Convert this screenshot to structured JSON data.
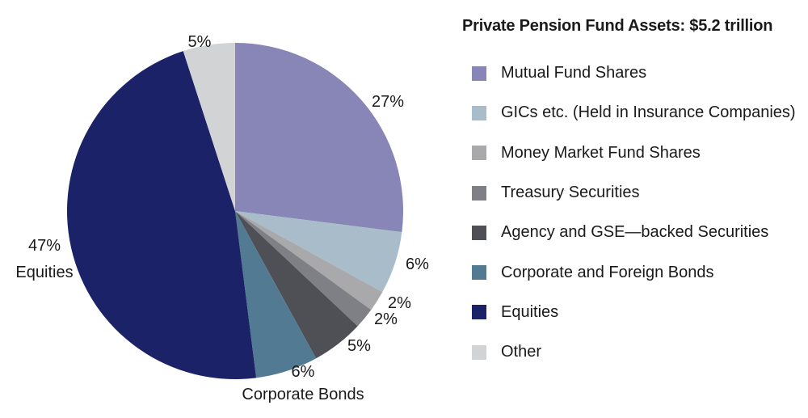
{
  "chart_data": {
    "type": "pie",
    "title": "Private Pension Fund Assets: $5.2 trillion",
    "slices": [
      {
        "name": "Mutual Fund Shares",
        "value": 27,
        "label": "27%",
        "color": "#8786b7"
      },
      {
        "name": "GICs etc. (Held in Insurance Companies)",
        "value": 6,
        "label": "6%",
        "color": "#a8bcc9"
      },
      {
        "name": "Money Market Fund Shares",
        "value": 2,
        "label": "2%",
        "color": "#a9a9ab"
      },
      {
        "name": "Treasury Securities",
        "value": 2,
        "label": "2%",
        "color": "#7f8085"
      },
      {
        "name": "Agency and GSE—backed Securities",
        "value": 5,
        "label": "5%",
        "color": "#4e5055"
      },
      {
        "name": "Corporate and Foreign Bonds",
        "value": 6,
        "label": "6%",
        "sublabel": "Corporate Bonds",
        "color": "#527a93"
      },
      {
        "name": "Equities",
        "value": 47,
        "label": "47%",
        "sublabel": "Equities",
        "color": "#1b2268"
      },
      {
        "name": "Other",
        "value": 5,
        "label": "5%",
        "color": "#d2d3d5"
      }
    ],
    "legend_position": "right"
  }
}
